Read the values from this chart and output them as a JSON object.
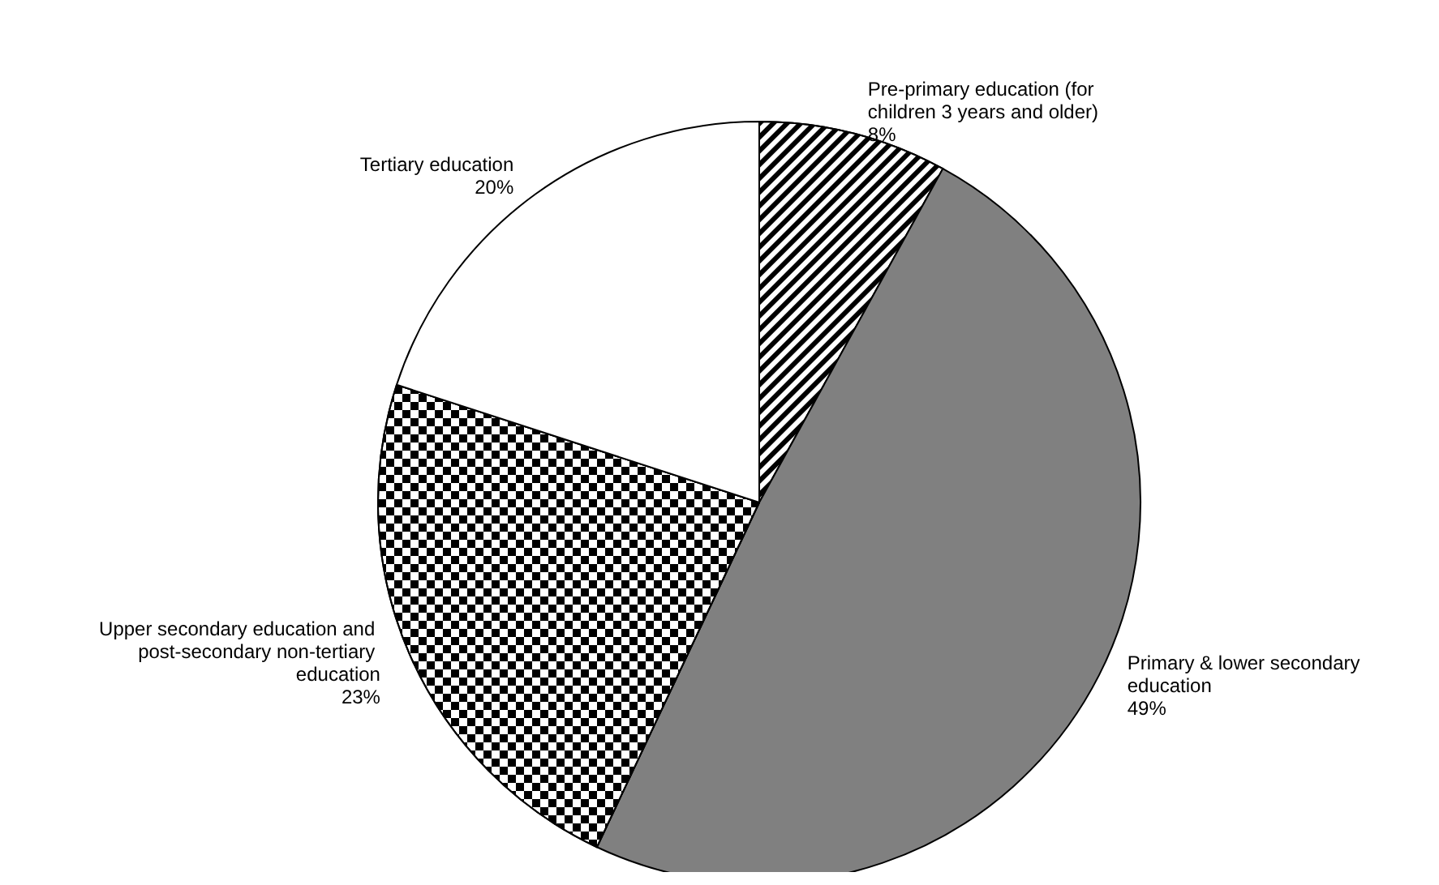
{
  "chart_data": {
    "type": "pie",
    "categories": [
      "Pre-primary education (for children 3 years and older)",
      "Primary & lower secondary education",
      "Upper secondary education and post-secondary non-tertiary education",
      "Tertiary education"
    ],
    "values": [
      8,
      49,
      23,
      20
    ],
    "value_labels": [
      "8%",
      "49%",
      "23%",
      "20%"
    ],
    "colors": [
      "#ffffff",
      "#808080",
      "#ffffff",
      "#ffffff"
    ]
  }
}
